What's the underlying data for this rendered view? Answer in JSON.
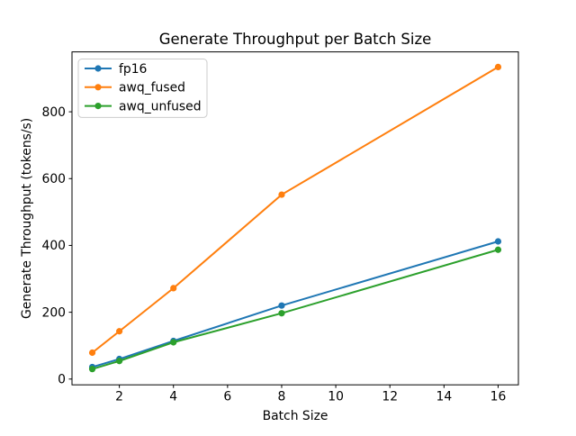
{
  "chart_data": {
    "type": "line",
    "title": "Generate Throughput per Batch Size",
    "xlabel": "Batch Size",
    "ylabel": "Generate Throughput (tokens/s)",
    "x": [
      1,
      2,
      4,
      8,
      16
    ],
    "series": [
      {
        "name": "fp16",
        "color": "#1f77b4",
        "values": [
          36,
          60,
          114,
          220,
          412
        ]
      },
      {
        "name": "awq_fused",
        "color": "#ff7f0e",
        "values": [
          79,
          143,
          272,
          552,
          934
        ]
      },
      {
        "name": "awq_unfused",
        "color": "#2ca02c",
        "values": [
          30,
          54,
          110,
          197,
          387
        ]
      }
    ],
    "xticks": [
      2,
      4,
      6,
      8,
      10,
      12,
      14,
      16
    ],
    "yticks": [
      0,
      200,
      400,
      600,
      800
    ],
    "xlim": [
      0.25,
      16.75
    ],
    "ylim": [
      -17.3,
      979.3
    ],
    "grid": false,
    "legend_position": "upper left",
    "marker": "o",
    "line_width": 2,
    "marker_radius": 3.6,
    "background_color": "#ffffff",
    "frame_color": "#000000",
    "legend_border_color": "#cccccc"
  }
}
